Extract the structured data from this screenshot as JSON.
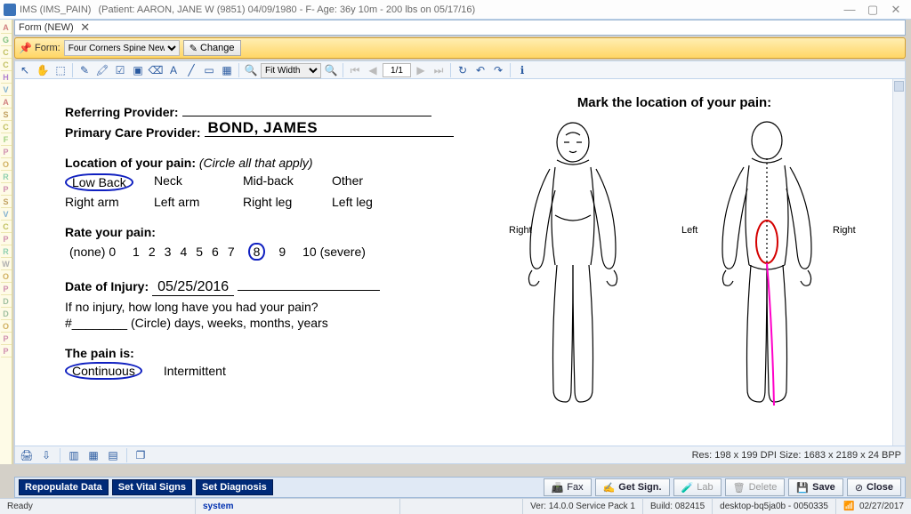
{
  "window": {
    "app_title": "IMS (IMS_PAIN)",
    "patient_info": "(Patient: AARON, JANE W (9851) 04/09/1980 - F- Age: 36y 10m - 200 lbs on 05/17/16)"
  },
  "subform_title": "Form (NEW)",
  "ribbon": {
    "form_label": "Form:",
    "form_value": "Four Corners Spine New Pati",
    "change_label": "Change"
  },
  "toolbar": {
    "fit_mode": "Fit Width",
    "page": "1/1"
  },
  "leftpanel_letters": [
    "A",
    "G",
    "C",
    "C",
    "H",
    "V",
    "A",
    "S",
    "C",
    "F",
    "P",
    "O",
    "R",
    "P",
    "S",
    "V",
    "C",
    "P",
    "R",
    "W",
    "O",
    "P",
    "D",
    "D",
    "O",
    "P",
    "P"
  ],
  "form": {
    "ref_provider_label": "Referring Provider:",
    "pcp_label": "Primary Care Provider:",
    "pcp_value": "BOND, JAMES",
    "location_label": "Location of your pain:",
    "location_hint": "(Circle all that apply)",
    "locations_row1": [
      "Low Back",
      "Neck",
      "Mid-back",
      "Other"
    ],
    "locations_row2": [
      "Right arm",
      "Left arm",
      "Right leg",
      "Left leg"
    ],
    "circled_location_index": 0,
    "rate_label": "Rate your pain:",
    "rate_left": "(none) 0",
    "rate_right": "10 (severe)",
    "pain_scale": [
      "1",
      "2",
      "3",
      "4",
      "5",
      "6",
      "7",
      "8",
      "9"
    ],
    "circled_pain": "8",
    "doi_label": "Date of Injury:",
    "doi_value": "05/25/2016",
    "noinj_line": "If no injury, how long have you had your pain?",
    "dur_line": "#________ (Circle) days, weeks, months, years",
    "painis_label": "The pain is:",
    "painis_opts": [
      "Continuous",
      "Intermittent"
    ],
    "painis_circled_index": 0,
    "diagram_header": "Mark the location of your pain:",
    "diagram_labels": {
      "right": "Right",
      "left": "Left",
      "right2": "Right"
    }
  },
  "ws_bottom": {
    "res_info": "Res:  198 x 199 DPI   Size: 1683 x 2189 x 24 BPP"
  },
  "actions": {
    "repopulate": "Repopulate Data",
    "setvitals": "Set Vital Signs",
    "setdiag": "Set Diagnosis",
    "fax": "Fax",
    "getsign": "Get Sign.",
    "lab": "Lab",
    "delete": "Delete",
    "save": "Save",
    "close": "Close"
  },
  "status": {
    "ready": "Ready",
    "user": "system",
    "ver": "Ver: 14.0.0 Service Pack 1",
    "build": "Build: 082415",
    "host": "desktop-bq5ja0b - 0050335",
    "date": "02/27/2017"
  },
  "leftcolors": {
    "A": "#d08080",
    "G": "#80c080",
    "C": "#c0c060",
    "H": "#b080d0",
    "V": "#80b0d0",
    "S": "#c0a060",
    "F": "#a0d080",
    "P": "#d090b0",
    "O": "#d0b060",
    "R": "#90d0b0",
    "W": "#b0b0b0",
    "D": "#a0c0a0"
  }
}
